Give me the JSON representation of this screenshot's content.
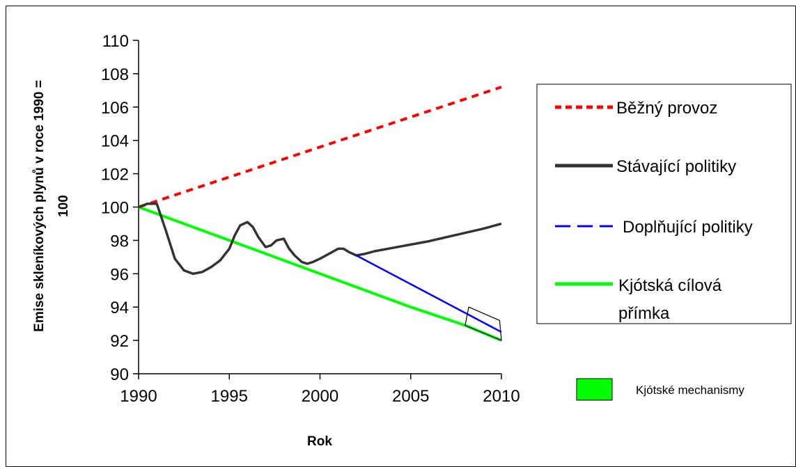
{
  "chart_data": {
    "type": "line",
    "xlabel": "Rok",
    "ylabel_line1": "Emise skleníkových plynů v roce 1990  =",
    "ylabel_line2": "100",
    "xlim": [
      1990,
      2010
    ],
    "ylim": [
      90,
      110
    ],
    "x_ticks": [
      1990,
      1995,
      2000,
      2005,
      2010
    ],
    "y_ticks": [
      90,
      92,
      94,
      96,
      98,
      100,
      102,
      104,
      106,
      108,
      110
    ],
    "grid": false,
    "legend_position": "right",
    "series": [
      {
        "name": "Běžný provoz",
        "color": "#ff0000",
        "style": "dotted",
        "x": [
          1990,
          2010
        ],
        "y": [
          100,
          107.2
        ]
      },
      {
        "name": "Stávající politiky",
        "color": "#333333",
        "style": "solid",
        "x": [
          1990,
          1990.5,
          1991,
          1991.5,
          1992,
          1992.5,
          1993,
          1993.5,
          1994,
          1994.5,
          1995,
          1995.3,
          1995.6,
          1996,
          1996.3,
          1996.6,
          1997,
          1997.3,
          1997.6,
          1998,
          1998.3,
          1998.6,
          1999,
          1999.3,
          1999.6,
          2000,
          2000.5,
          2001,
          2001.3,
          2001.6,
          2002,
          2002.5,
          2003,
          2004,
          2005,
          2006,
          2007,
          2008,
          2009,
          2010
        ],
        "y": [
          100,
          100.2,
          100.2,
          98.6,
          96.9,
          96.2,
          96.0,
          96.1,
          96.4,
          96.8,
          97.5,
          98.3,
          98.9,
          99.1,
          98.8,
          98.2,
          97.6,
          97.7,
          98.0,
          98.1,
          97.5,
          97.1,
          96.7,
          96.6,
          96.7,
          96.9,
          97.2,
          97.5,
          97.5,
          97.3,
          97.1,
          97.2,
          97.35,
          97.55,
          97.75,
          97.95,
          98.2,
          98.45,
          98.7,
          99.0
        ]
      },
      {
        "name": "Doplňující politiky",
        "color": "#0000ff",
        "style": "dashed",
        "x": [
          2002,
          2010
        ],
        "y": [
          97.1,
          92.5
        ]
      },
      {
        "name": "Kjótská cílová přímka",
        "color": "#00ff00",
        "style": "solid",
        "x": [
          1990,
          1995,
          2000,
          2002.5,
          2005,
          2008,
          2010
        ],
        "y": [
          100,
          98,
          96,
          95,
          94,
          92.9,
          92
        ]
      }
    ],
    "kyoto_box": {
      "name": "Kjótské mechanismy",
      "corners": [
        [
          2008.2,
          94.0
        ],
        [
          2009.9,
          93.2
        ],
        [
          2010,
          92.0
        ],
        [
          2008.0,
          92.9
        ]
      ]
    }
  },
  "legend": {
    "entries": [
      {
        "label": "Běžný provoz"
      },
      {
        "label": "Stávající politiky"
      },
      {
        "label": "Doplňující politiky"
      },
      {
        "label_line1": "Kjótská cílová",
        "label_line2": "přímka"
      }
    ],
    "mechanisms_label": "Kjótské mechanismy",
    "mechanisms_color": "#00ff00"
  }
}
